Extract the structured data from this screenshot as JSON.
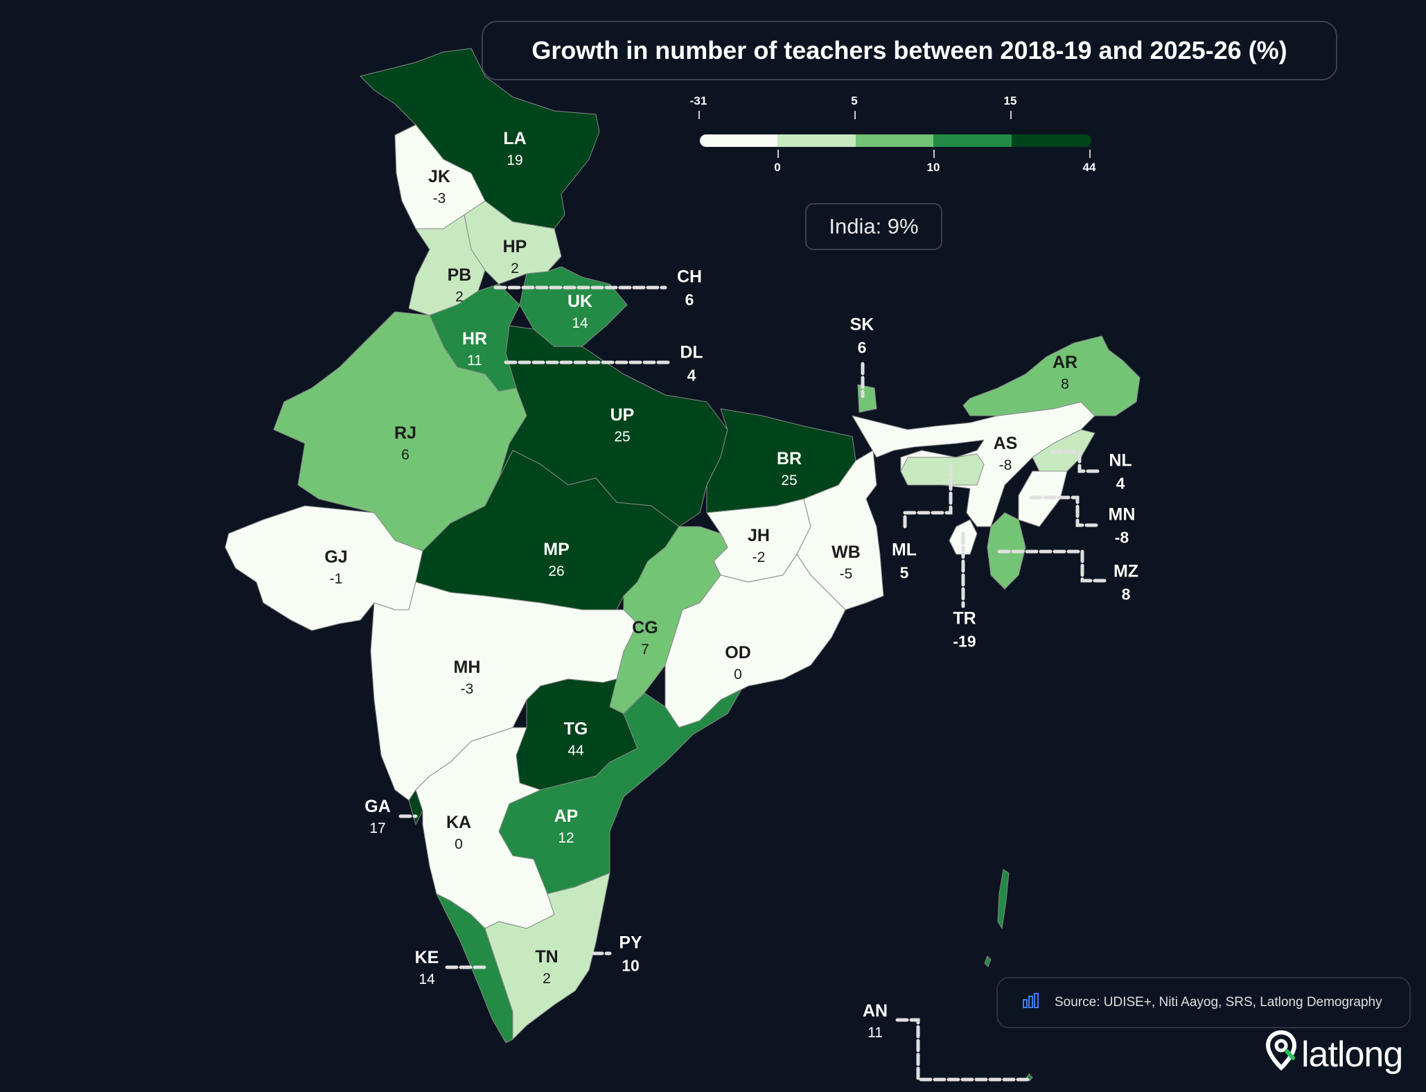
{
  "title": "Growth in number of teachers between 2018-19 and 2025-26 (%)",
  "india_summary": "India: 9%",
  "source": "Source: UDISE+, Niti Aayog, SRS, Latlong Demography",
  "logo_text": "latlong",
  "icons": {
    "source": "bar-chart-icon",
    "logo": "location-pin-icon"
  },
  "legend": {
    "top_ticks": [
      "-31",
      "5",
      "15"
    ],
    "bottom_ticks": [
      "0",
      "10",
      "44"
    ],
    "bins": [
      {
        "from": -31,
        "to": 0,
        "color": "#f7fcf5"
      },
      {
        "from": 0,
        "to": 5,
        "color": "#c7e9c0"
      },
      {
        "from": 5,
        "to": 10,
        "color": "#74c476"
      },
      {
        "from": 10,
        "to": 15,
        "color": "#238b45"
      },
      {
        "from": 15,
        "to": 44,
        "color": "#00441b"
      }
    ]
  },
  "states": [
    {
      "code": "LA",
      "value": "19"
    },
    {
      "code": "JK",
      "value": "-3"
    },
    {
      "code": "HP",
      "value": "2"
    },
    {
      "code": "PB",
      "value": "2"
    },
    {
      "code": "CH",
      "value": "6"
    },
    {
      "code": "UK",
      "value": "14"
    },
    {
      "code": "HR",
      "value": "11"
    },
    {
      "code": "DL",
      "value": "4"
    },
    {
      "code": "RJ",
      "value": "6"
    },
    {
      "code": "UP",
      "value": "25"
    },
    {
      "code": "BR",
      "value": "25"
    },
    {
      "code": "SK",
      "value": "6"
    },
    {
      "code": "AR",
      "value": "8"
    },
    {
      "code": "AS",
      "value": "-8"
    },
    {
      "code": "NL",
      "value": "4"
    },
    {
      "code": "MN",
      "value": "-8"
    },
    {
      "code": "ML",
      "value": "5"
    },
    {
      "code": "MZ",
      "value": "8"
    },
    {
      "code": "TR",
      "value": "-19"
    },
    {
      "code": "GJ",
      "value": "-1"
    },
    {
      "code": "MP",
      "value": "26"
    },
    {
      "code": "JH",
      "value": "-2"
    },
    {
      "code": "WB",
      "value": "-5"
    },
    {
      "code": "CG",
      "value": "7"
    },
    {
      "code": "OD",
      "value": "0"
    },
    {
      "code": "MH",
      "value": "-3"
    },
    {
      "code": "TG",
      "value": "44"
    },
    {
      "code": "GA",
      "value": "17"
    },
    {
      "code": "KA",
      "value": "0"
    },
    {
      "code": "AP",
      "value": "12"
    },
    {
      "code": "KE",
      "value": "14"
    },
    {
      "code": "TN",
      "value": "2"
    },
    {
      "code": "PY",
      "value": "10"
    },
    {
      "code": "AN",
      "value": "11"
    }
  ]
}
